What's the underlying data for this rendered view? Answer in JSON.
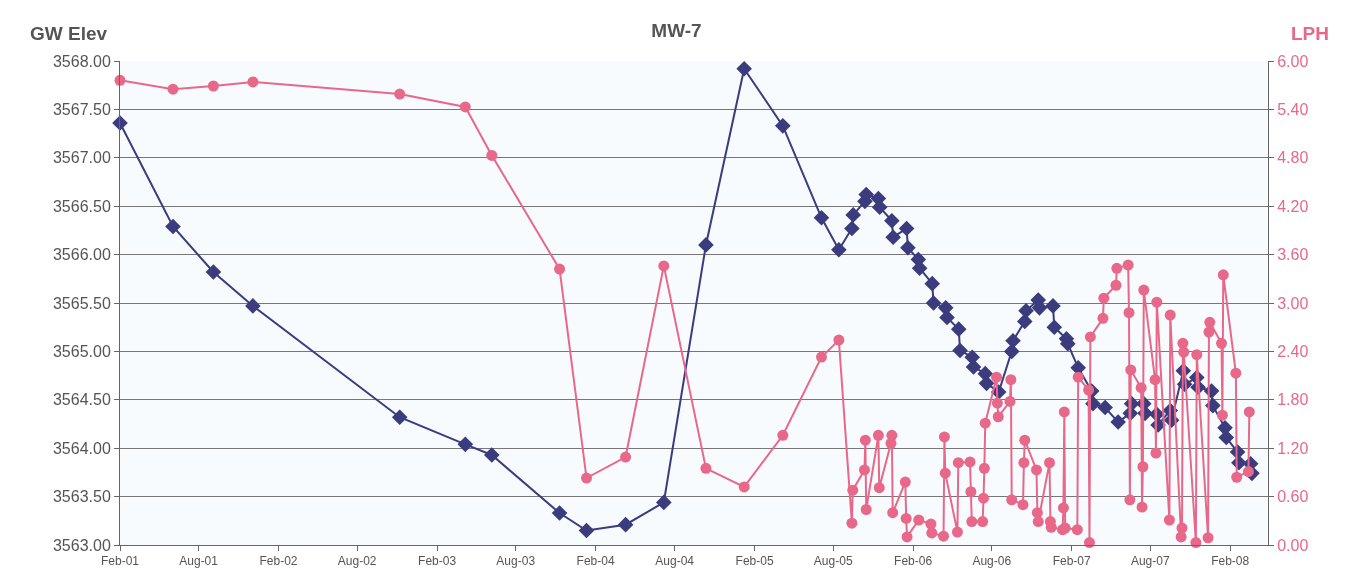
{
  "chart_data": {
    "type": "line",
    "title": "MW-7",
    "ylabel": "GW Elev",
    "y2label": "LPH",
    "grid": "y",
    "line_style": "solid",
    "xlim": [
      "2001-02-01",
      "2008-04-28"
    ],
    "xticks": [
      {
        "value": "2001-02-01",
        "label": "Feb-01"
      },
      {
        "value": "2001-08-01",
        "label": "Aug-01"
      },
      {
        "value": "2002-02-01",
        "label": "Feb-02"
      },
      {
        "value": "2002-08-01",
        "label": "Aug-02"
      },
      {
        "value": "2003-02-01",
        "label": "Feb-03"
      },
      {
        "value": "2003-08-01",
        "label": "Aug-03"
      },
      {
        "value": "2004-02-01",
        "label": "Feb-04"
      },
      {
        "value": "2004-08-01",
        "label": "Aug-04"
      },
      {
        "value": "2005-02-01",
        "label": "Feb-05"
      },
      {
        "value": "2005-08-01",
        "label": "Aug-05"
      },
      {
        "value": "2006-02-01",
        "label": "Feb-06"
      },
      {
        "value": "2006-08-01",
        "label": "Aug-06"
      },
      {
        "value": "2007-02-01",
        "label": "Feb-07"
      },
      {
        "value": "2007-08-01",
        "label": "Aug-07"
      },
      {
        "value": "2008-02-01",
        "label": "Feb-08"
      }
    ],
    "ylim": [
      3563,
      3568
    ],
    "yticks": [
      {
        "value": 3563,
        "label": "3563.00"
      },
      {
        "value": 3563.5,
        "label": "3563.50"
      },
      {
        "value": 3564,
        "label": "3564.00"
      },
      {
        "value": 3564.5,
        "label": "3564.50"
      },
      {
        "value": 3565,
        "label": "3565.00"
      },
      {
        "value": 3565.5,
        "label": "3565.50"
      },
      {
        "value": 3566,
        "label": "3566.00"
      },
      {
        "value": 3566.5,
        "label": "3566.50"
      },
      {
        "value": 3567,
        "label": "3567.00"
      },
      {
        "value": 3567.5,
        "label": "3567.50"
      },
      {
        "value": 3568,
        "label": "3568.00"
      }
    ],
    "y2lim": [
      0,
      6
    ],
    "y2ticks": [
      {
        "value": 0,
        "label": "0.00"
      },
      {
        "value": 0.6,
        "label": "0.60"
      },
      {
        "value": 1.2,
        "label": "1.20"
      },
      {
        "value": 1.8,
        "label": "1.80"
      },
      {
        "value": 2.4,
        "label": "2.40"
      },
      {
        "value": 3,
        "label": "3.00"
      },
      {
        "value": 3.6,
        "label": "3.60"
      },
      {
        "value": 4.2,
        "label": "4.20"
      },
      {
        "value": 4.8,
        "label": "4.80"
      },
      {
        "value": 5.4,
        "label": "5.40"
      },
      {
        "value": 6,
        "label": "6.00"
      }
    ],
    "series": [
      {
        "color": "#3b3b7e",
        "marker": "diamond",
        "x": [
          "2001-02-01",
          "2001-06-03",
          "2001-09-04",
          "2001-12-04",
          "2002-11-07",
          "2003-04-07",
          "2003-06-07",
          "2003-11-10",
          "2004-01-11",
          "2004-04-10",
          "2004-07-07",
          "2004-10-12",
          "2005-01-08",
          "2005-04-07",
          "2005-07-05",
          "2005-08-14",
          "2005-09-13",
          "2005-09-16",
          "2005-10-13",
          "2005-10-16",
          "2005-11-13",
          "2005-11-16",
          "2005-12-14",
          "2005-12-17",
          "2006-01-17",
          "2006-01-20",
          "2006-02-13",
          "2006-02-16",
          "2006-03-17",
          "2006-03-20",
          "2006-04-17",
          "2006-04-20",
          "2006-05-17",
          "2006-05-20",
          "2006-06-17",
          "2006-06-20",
          "2006-07-17",
          "2006-07-20",
          "2006-08-17",
          "2006-09-16",
          "2006-09-19",
          "2006-10-16",
          "2006-10-19",
          "2006-11-16",
          "2006-11-19",
          "2006-12-20",
          "2006-12-23",
          "2007-01-20",
          "2007-01-23",
          "2007-02-16",
          "2007-03-19",
          "2007-03-22",
          "2007-04-19",
          "2007-05-19",
          "2007-06-16",
          "2007-06-19",
          "2007-07-17",
          "2007-07-20",
          "2007-08-16",
          "2007-08-19",
          "2007-09-16",
          "2007-09-19",
          "2007-10-16",
          "2007-10-19",
          "2007-11-16",
          "2007-11-19",
          "2007-12-20",
          "2007-12-23",
          "2008-01-20",
          "2008-01-23",
          "2008-02-18",
          "2008-02-21",
          "2008-03-19",
          "2008-03-22"
        ],
        "values": [
          3567.36,
          3566.29,
          3565.82,
          3565.47,
          3564.32,
          3564.04,
          3563.93,
          3563.33,
          3563.15,
          3563.21,
          3563.44,
          3566.1,
          3567.92,
          3567.33,
          3566.38,
          3566.05,
          3566.27,
          3566.41,
          3566.55,
          3566.62,
          3566.58,
          3566.49,
          3566.35,
          3566.18,
          3566.27,
          3566.07,
          3565.95,
          3565.86,
          3565.7,
          3565.5,
          3565.45,
          3565.35,
          3565.23,
          3565.01,
          3564.94,
          3564.84,
          3564.77,
          3564.67,
          3564.58,
          3565,
          3565.11,
          3565.31,
          3565.42,
          3565.53,
          3565.45,
          3565.47,
          3565.25,
          3565.13,
          3565.08,
          3564.83,
          3564.59,
          3564.46,
          3564.42,
          3564.27,
          3564.36,
          3564.46,
          3564.46,
          3564.36,
          3564.35,
          3564.24,
          3564.39,
          3564.29,
          3564.8,
          3564.66,
          3564.73,
          3564.63,
          3564.59,
          3564.44,
          3564.21,
          3564.11,
          3563.96,
          3563.85,
          3563.84,
          3563.74
        ]
      },
      {
        "color": "#e8688a",
        "marker": "circle",
        "axis": "y2",
        "x": [
          "2001-02-01",
          "2001-06-03",
          "2001-09-04",
          "2001-12-04",
          "2002-11-07",
          "2003-04-07",
          "2003-06-07",
          "2003-11-10",
          "2004-01-11",
          "2004-04-10",
          "2004-07-07",
          "2004-10-12",
          "2005-01-08",
          "2005-04-07",
          "2005-07-05",
          "2005-08-14",
          "2005-09-13",
          "2005-09-15",
          "2005-10-12",
          "2005-10-14",
          "2005-10-16",
          "2005-11-13",
          "2005-11-15",
          "2005-12-12",
          "2005-12-14",
          "2005-12-16",
          "2006-01-14",
          "2006-01-16",
          "2006-01-18",
          "2006-02-14",
          "2006-03-14",
          "2006-03-16",
          "2006-04-12",
          "2006-04-14",
          "2006-04-16",
          "2006-05-14",
          "2006-05-16",
          "2006-06-12",
          "2006-06-14",
          "2006-06-16",
          "2006-07-11",
          "2006-07-13",
          "2006-07-15",
          "2006-07-17",
          "2006-08-12",
          "2006-08-14",
          "2006-08-16",
          "2006-09-12",
          "2006-09-14",
          "2006-09-16",
          "2006-10-12",
          "2006-10-14",
          "2006-10-16",
          "2006-11-12",
          "2006-11-14",
          "2006-11-16",
          "2006-12-12",
          "2006-12-14",
          "2006-12-16",
          "2007-01-11",
          "2007-01-13",
          "2007-01-15",
          "2007-01-17",
          "2007-02-14",
          "2007-02-16",
          "2007-03-12",
          "2007-03-14",
          "2007-03-16",
          "2007-04-14",
          "2007-04-16",
          "2007-05-14",
          "2007-05-16",
          "2007-06-11",
          "2007-06-13",
          "2007-06-15",
          "2007-06-17",
          "2007-07-11",
          "2007-07-13",
          "2007-07-15",
          "2007-07-17",
          "2007-08-12",
          "2007-08-14",
          "2007-08-16",
          "2007-09-14",
          "2007-09-16",
          "2007-10-11",
          "2007-10-13",
          "2007-10-15",
          "2007-10-17",
          "2007-11-14",
          "2007-11-16",
          "2007-12-12",
          "2007-12-14",
          "2007-12-16",
          "2008-01-12",
          "2008-01-14",
          "2008-01-16",
          "2008-02-14",
          "2008-02-16",
          "2008-03-14",
          "2008-03-16"
        ],
        "values": [
          5.76,
          5.65,
          5.69,
          5.74,
          5.59,
          5.43,
          4.83,
          3.42,
          0.83,
          1.09,
          3.46,
          0.95,
          0.72,
          1.36,
          2.33,
          2.54,
          0.27,
          0.68,
          0.93,
          1.3,
          0.44,
          1.36,
          0.71,
          1.26,
          1.36,
          0.4,
          0.78,
          0.33,
          0.1,
          0.31,
          0.26,
          0.15,
          0.11,
          1.34,
          0.89,
          0.16,
          1.02,
          1.03,
          0.66,
          0.29,
          0.29,
          0.58,
          0.95,
          1.51,
          2.08,
          1.76,
          1.59,
          1.78,
          2.05,
          0.56,
          0.5,
          1.02,
          1.3,
          0.93,
          0.4,
          0.29,
          1.02,
          0.29,
          0.22,
          0.19,
          0.46,
          1.65,
          0.21,
          0.19,
          2.08,
          1.92,
          0.03,
          2.58,
          2.81,
          3.06,
          3.22,
          3.43,
          3.47,
          2.88,
          0.56,
          2.17,
          1.95,
          0.47,
          0.97,
          3.16,
          2.05,
          1.14,
          3.01,
          0.31,
          2.85,
          0.1,
          0.21,
          2.5,
          2.39,
          0.03,
          2.36,
          0.09,
          2.64,
          2.76,
          2.5,
          1.61,
          3.35,
          2.13,
          0.84,
          0.91,
          1.65
        ]
      }
    ]
  }
}
